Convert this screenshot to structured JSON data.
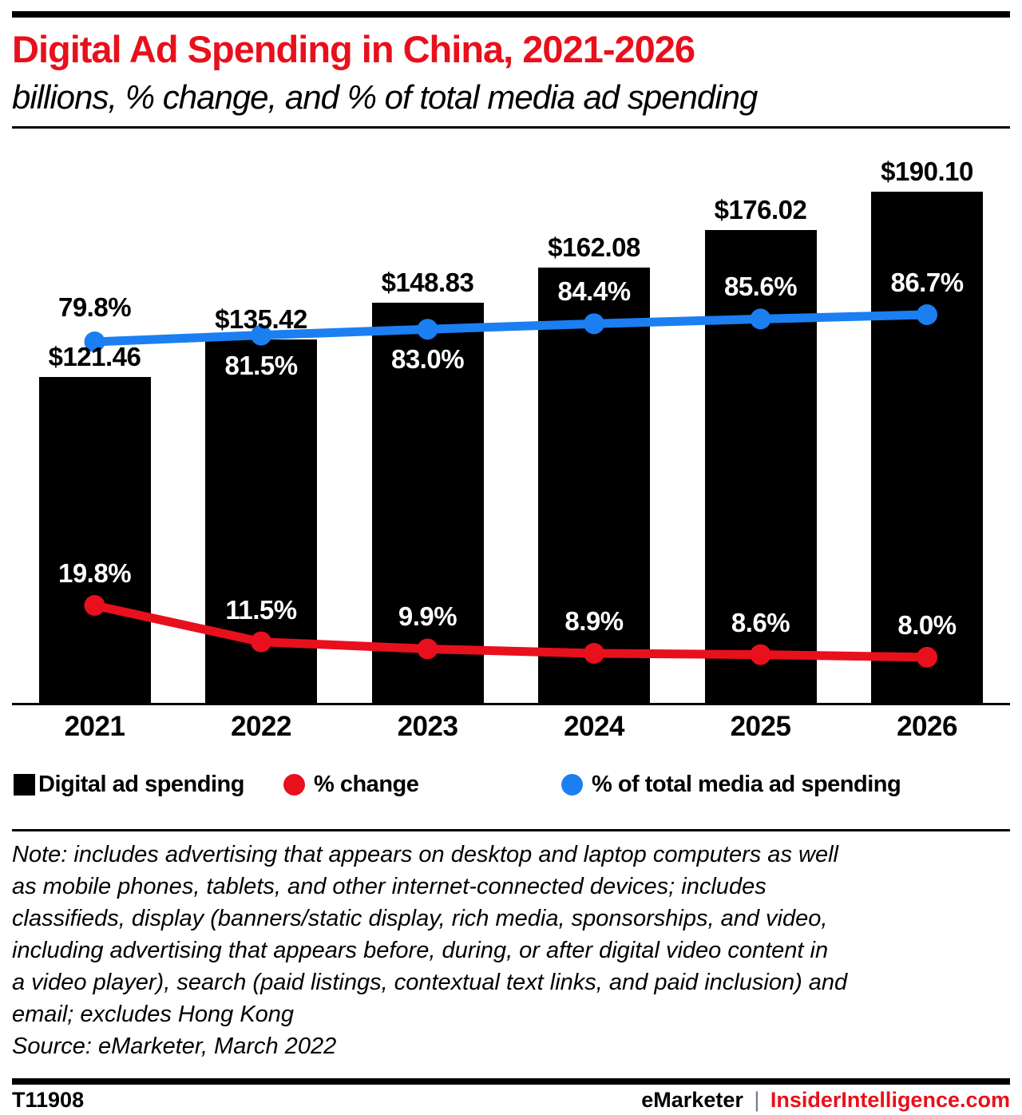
{
  "header": {
    "title": "Digital Ad Spending in China, 2021-2026",
    "subtitle": "billions, % change, and % of total media ad spending"
  },
  "chart_data": {
    "type": "bar",
    "title": "Digital Ad Spending in China, 2021-2026",
    "subtitle": "billions, % change, and % of total media ad spending",
    "categories": [
      "2021",
      "2022",
      "2023",
      "2024",
      "2025",
      "2026"
    ],
    "series": [
      {
        "name": "Digital ad spending",
        "type": "bar",
        "unit": "billions of dollars",
        "color": "#000000",
        "values": [
          121.46,
          135.42,
          148.83,
          162.08,
          176.02,
          190.1
        ],
        "labels": [
          "$121.46",
          "$135.42",
          "$148.83",
          "$162.08",
          "$176.02",
          "$190.10"
        ]
      },
      {
        "name": "% change",
        "type": "line",
        "unit": "percent",
        "color": "#e8101c",
        "values": [
          19.8,
          11.5,
          9.9,
          8.9,
          8.6,
          8.0
        ],
        "labels": [
          "19.8%",
          "11.5%",
          "9.9%",
          "8.9%",
          "8.6%",
          "8.0%"
        ]
      },
      {
        "name": "% of total media ad spending",
        "type": "line",
        "unit": "percent",
        "color": "#1b7ff2",
        "values": [
          79.8,
          81.5,
          83.0,
          84.4,
          85.6,
          86.7
        ],
        "labels": [
          "79.8%",
          "81.5%",
          "83.0%",
          "84.4%",
          "85.6%",
          "86.7%"
        ]
      }
    ],
    "grid": false,
    "y_axis_visible": false,
    "legend_position": "bottom"
  },
  "legend": {
    "items": [
      {
        "label": "Digital ad spending",
        "swatch": "square",
        "color": "#000000"
      },
      {
        "label": "% change",
        "swatch": "circle",
        "color": "#e8101c"
      },
      {
        "label": "% of total media ad spending",
        "swatch": "circle",
        "color": "#1b7ff2"
      }
    ]
  },
  "note": {
    "lines": [
      "Note: includes advertising that appears on desktop and laptop computers as well",
      "as mobile phones, tablets, and other internet-connected devices; includes",
      "classifieds, display (banners/static display, rich media, sponsorships, and video,",
      "including advertising that appears before, during, or after digital video content in",
      "a video player), search (paid listings, contextual text links, and paid inclusion) and",
      "email; excludes Hong Kong"
    ],
    "source": "Source: eMarketer, March 2022"
  },
  "footer": {
    "chart_id": "T11908",
    "brand": "eMarketer",
    "separator": "|",
    "site": "InsiderIntelligence.com"
  },
  "colors": {
    "accent_red": "#e8101c",
    "accent_blue": "#1b7ff2",
    "bar_black": "#000000",
    "footer_separator": "#6e7b8f"
  }
}
